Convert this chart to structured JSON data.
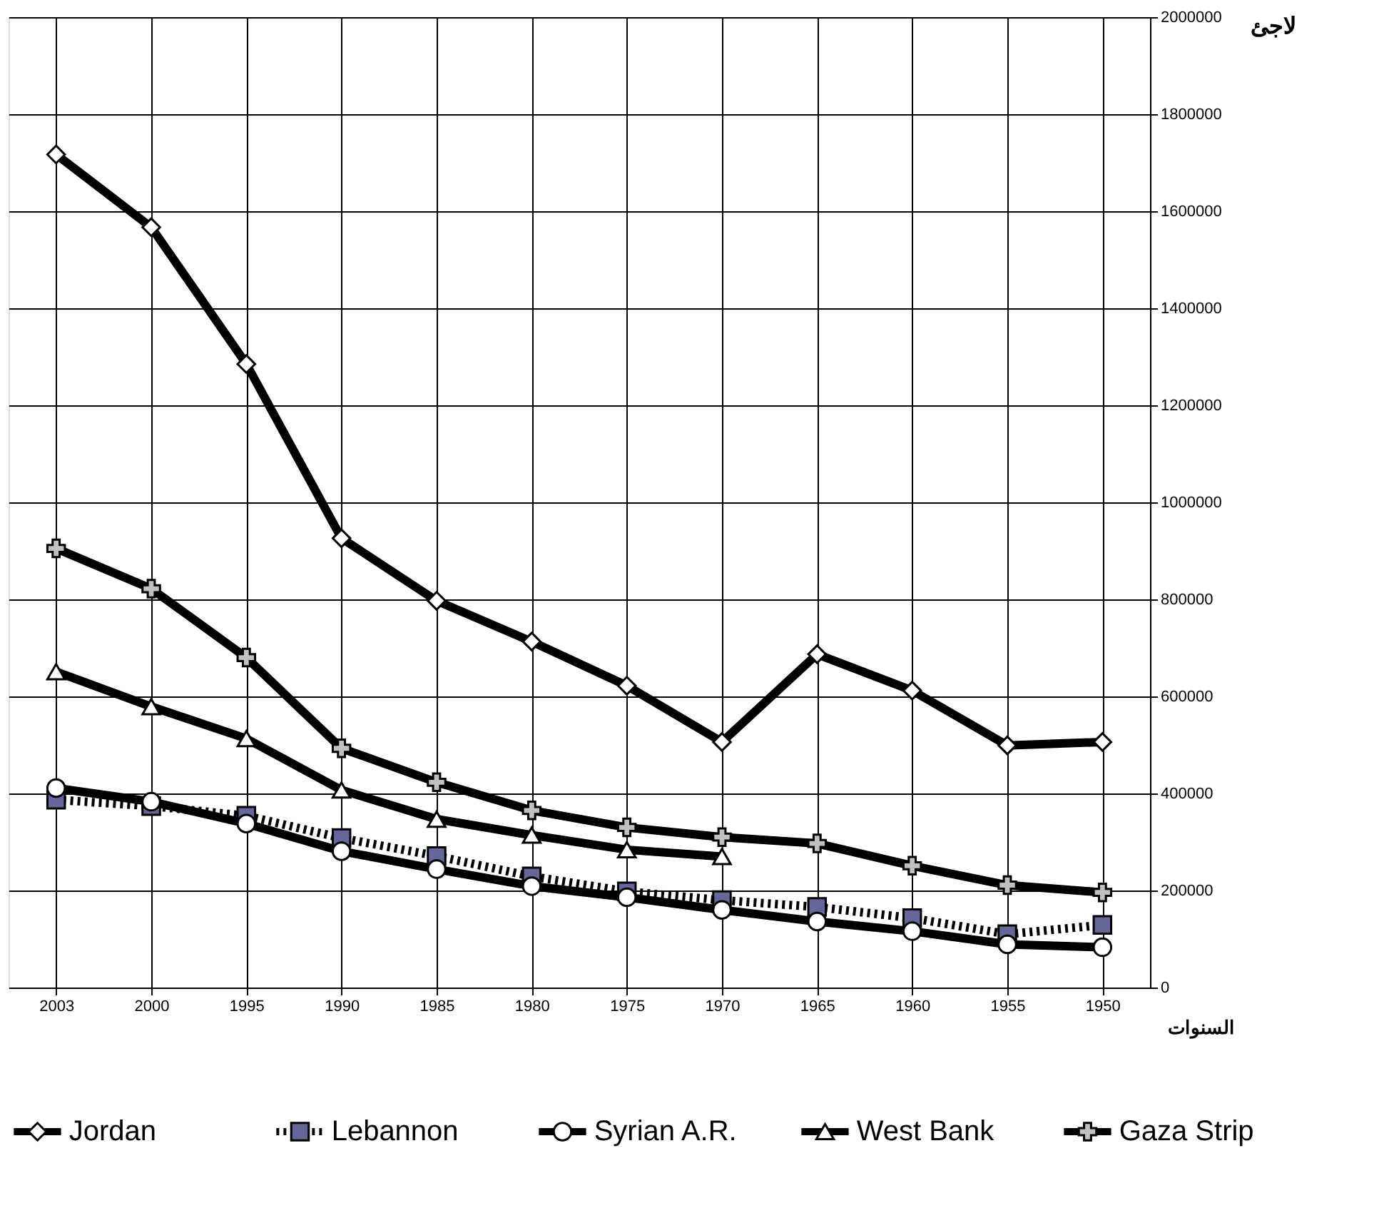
{
  "chart_data": {
    "type": "line",
    "xlabel": "السنوات",
    "ylabel": "لاجئ",
    "categories": [
      "2003",
      "2000",
      "1995",
      "1990",
      "1985",
      "1980",
      "1975",
      "1970",
      "1965",
      "1960",
      "1955",
      "1950"
    ],
    "ylim": [
      0,
      2000000
    ],
    "yticks": [
      0,
      200000,
      400000,
      600000,
      800000,
      1000000,
      1200000,
      1400000,
      1600000,
      1800000,
      2000000
    ],
    "grid": true,
    "legend": "bottom",
    "series": [
      {
        "name": "Jordan",
        "color": "#ffffff",
        "marker": "diamond",
        "line_style": "solid",
        "values": [
          1717000,
          1567000,
          1285000,
          926000,
          797000,
          713000,
          622000,
          506000,
          687000,
          612000,
          499000,
          506000
        ]
      },
      {
        "name": "Lebannon",
        "color": "#666699",
        "marker": "square",
        "line_style": "dotted",
        "values": [
          387000,
          374000,
          354000,
          308000,
          271000,
          229000,
          198000,
          180000,
          166000,
          143000,
          110000,
          129000
        ]
      },
      {
        "name": "Syrian A.R.",
        "color": "#ffffff",
        "marker": "circle",
        "line_style": "solid",
        "values": [
          411000,
          383000,
          338000,
          281000,
          244000,
          209000,
          186000,
          160000,
          136000,
          116000,
          89000,
          83000
        ]
      },
      {
        "name": "West Bank",
        "color": "#ffffff",
        "marker": "triangle",
        "line_style": "solid",
        "values": [
          651000,
          579000,
          513000,
          407000,
          347000,
          314000,
          284000,
          270000,
          null,
          null,
          null,
          null
        ]
      },
      {
        "name": "Gaza Strip",
        "color": "#c0c0c0",
        "marker": "cross",
        "line_style": "solid",
        "values": [
          905000,
          822000,
          680000,
          493000,
          423000,
          365000,
          330000,
          310000,
          297000,
          251000,
          211000,
          196000
        ]
      }
    ]
  }
}
